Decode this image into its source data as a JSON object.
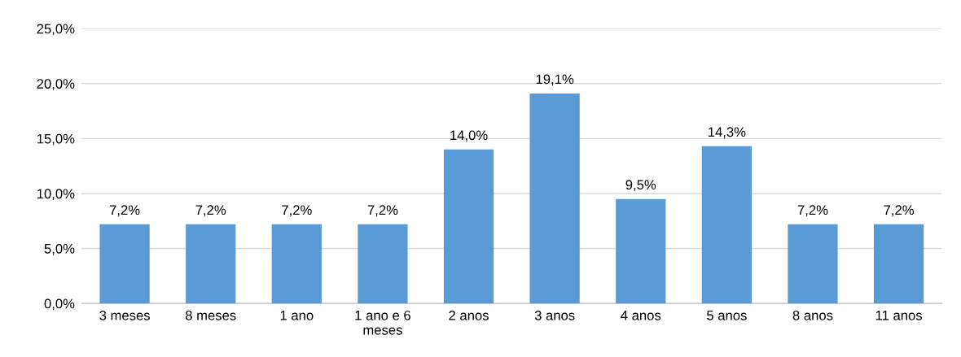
{
  "chart_data": {
    "type": "bar",
    "categories": [
      "3 meses",
      "8 meses",
      "1 ano",
      "1 ano e 6\nmeses",
      "2 anos",
      "3 anos",
      "4 anos",
      "5 anos",
      "8 anos",
      "11 anos"
    ],
    "values": [
      7.2,
      7.2,
      7.2,
      7.2,
      14.0,
      19.1,
      9.5,
      14.3,
      7.2,
      7.2
    ],
    "value_labels": [
      "7,2%",
      "7,2%",
      "7,2%",
      "7,2%",
      "14,0%",
      "19,1%",
      "9,5%",
      "14,3%",
      "7,2%",
      "7,2%"
    ],
    "color": "#5b9bd5",
    "ylim": [
      0,
      25
    ],
    "yticks": [
      {
        "value": 0,
        "label": "0,0%"
      },
      {
        "value": 5,
        "label": "5,0%"
      },
      {
        "value": 10,
        "label": "10,0%"
      },
      {
        "value": 15,
        "label": "15,0%"
      },
      {
        "value": 20,
        "label": "20,0%"
      },
      {
        "value": 25,
        "label": "25,0%"
      }
    ],
    "grid": "y",
    "legend": false
  }
}
